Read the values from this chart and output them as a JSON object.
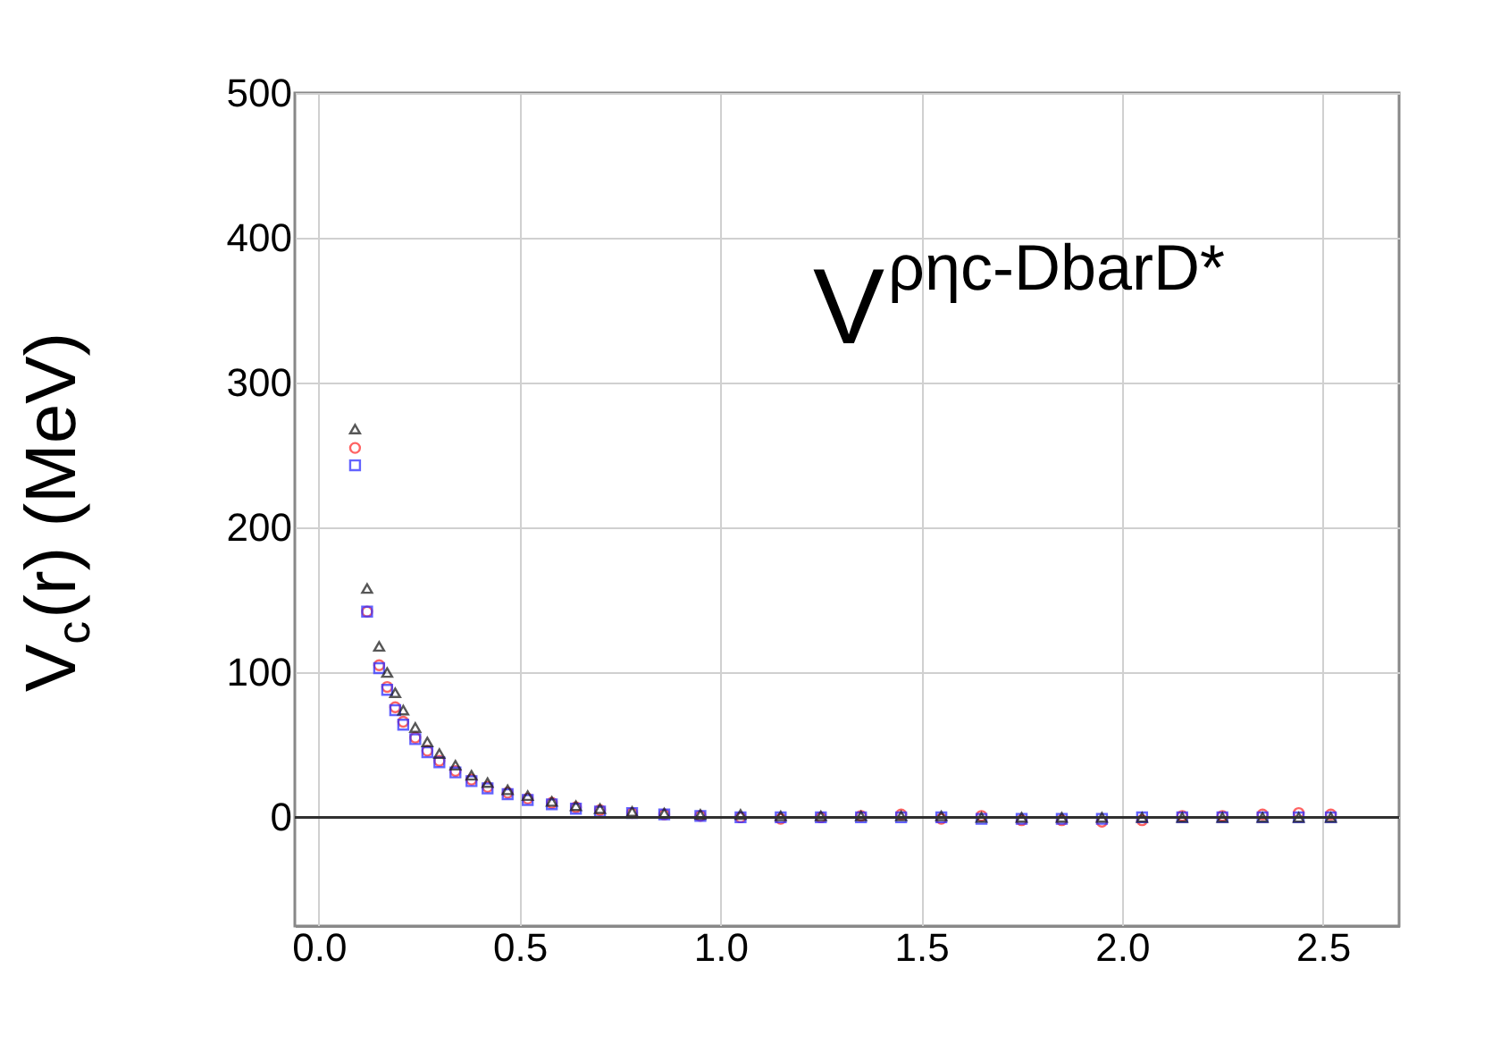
{
  "chart_data": {
    "type": "scatter",
    "ylabel": "V$_{c}$(r) (MeV)",
    "annotations": [
      "V$^{ρηc-DbarD*}$"
    ],
    "x": [
      0.09,
      0.12,
      0.15,
      0.17,
      0.19,
      0.21,
      0.24,
      0.27,
      0.3,
      0.34,
      0.38,
      0.42,
      0.47,
      0.52,
      0.58,
      0.64,
      0.7,
      0.78,
      0.86,
      0.95,
      1.05,
      1.15,
      1.25,
      1.35,
      1.45,
      1.55,
      1.65,
      1.75,
      1.85,
      1.95,
      2.05,
      2.15,
      2.25,
      2.35,
      2.44,
      2.52
    ],
    "series": [
      {
        "color": "#ff3030",
        "marker": "circle",
        "values": [
          255,
          142,
          105,
          90,
          76,
          66,
          55,
          46,
          39,
          32,
          26,
          21,
          17,
          13,
          10,
          7,
          5,
          3,
          2,
          1,
          0,
          -1,
          0,
          1,
          2,
          -1,
          1,
          -2,
          -2,
          -3,
          -2,
          1,
          1,
          2,
          3,
          2
        ]
      },
      {
        "color": "#3030ff",
        "marker": "square",
        "values": [
          243,
          142,
          103,
          88,
          74,
          64,
          54,
          45,
          38,
          31,
          25,
          20,
          16,
          12,
          9,
          6,
          4,
          3,
          2,
          1,
          0,
          0,
          0,
          0,
          0,
          0,
          -1,
          -1,
          -1,
          -1,
          0,
          0,
          0,
          0,
          0,
          0
        ]
      },
      {
        "color": "#202020",
        "marker": "triangle",
        "values": [
          268,
          158,
          118,
          100,
          86,
          74,
          62,
          52,
          44,
          36,
          29,
          24,
          19,
          15,
          11,
          8,
          6,
          4,
          3,
          2,
          2,
          1,
          1,
          1,
          1,
          1,
          0,
          0,
          0,
          0,
          0,
          0,
          0,
          0,
          0,
          0
        ]
      }
    ],
    "xlim": [
      -0.06,
      2.69
    ],
    "ylim": [
      -75,
      500
    ],
    "xticks": [
      {
        "value": 0,
        "label": "0.0"
      },
      {
        "value": 0.5,
        "label": "0.5"
      },
      {
        "value": 1,
        "label": "1.0"
      },
      {
        "value": 1.5,
        "label": "1.5"
      },
      {
        "value": 2,
        "label": "2.0"
      },
      {
        "value": 2.5,
        "label": "2.5"
      }
    ],
    "yticks": [
      0,
      100,
      200,
      300,
      400,
      500
    ],
    "ref_lines": [
      {
        "axis": "y",
        "value": 0,
        "color": "#303030"
      }
    ],
    "grid": true
  }
}
